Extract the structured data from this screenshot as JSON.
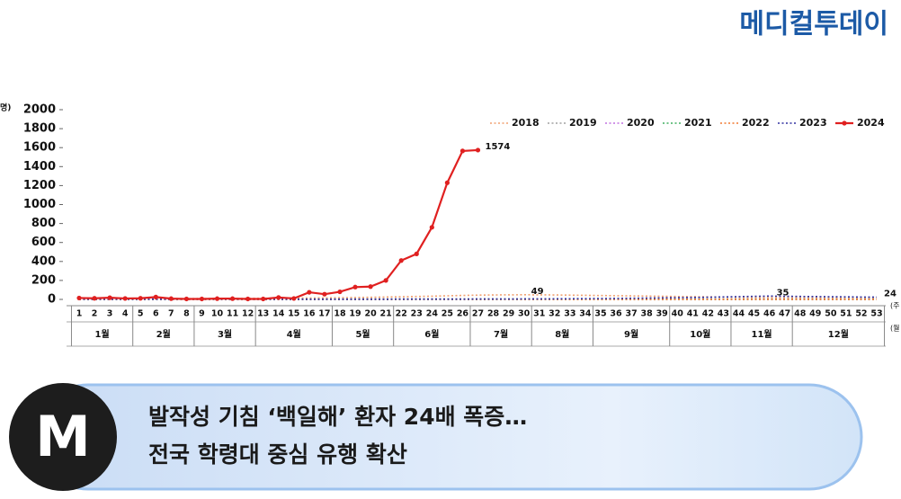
{
  "brand": "메디컬투데이",
  "headline": [
    "발작성 기침 ‘백일해’ 환자 24배 폭증…",
    "전국 학령대 중심 유행 확산"
  ],
  "logo_letter": "M",
  "chart_data": {
    "type": "line",
    "y_unit_label": "명)",
    "x_unit_labels": [
      "(주",
      "(월"
    ],
    "x": [
      1,
      2,
      3,
      4,
      5,
      6,
      7,
      8,
      9,
      10,
      11,
      12,
      13,
      14,
      15,
      16,
      17,
      18,
      19,
      20,
      21,
      22,
      23,
      24,
      25,
      26,
      27,
      28,
      29,
      30,
      31,
      32,
      33,
      34,
      35,
      36,
      37,
      38,
      39,
      40,
      41,
      42,
      43,
      44,
      45,
      46,
      47,
      48,
      49,
      50,
      51,
      52,
      53
    ],
    "xlim": [
      1,
      53
    ],
    "ylim": [
      0,
      2000
    ],
    "yticks": [
      0,
      200,
      400,
      600,
      800,
      1000,
      1200,
      1400,
      1600,
      1800,
      2000
    ],
    "month_groups": [
      {
        "label": "1월",
        "first_week": 1,
        "last_week": 4
      },
      {
        "label": "2월",
        "first_week": 5,
        "last_week": 8
      },
      {
        "label": "3월",
        "first_week": 9,
        "last_week": 12
      },
      {
        "label": "4월",
        "first_week": 13,
        "last_week": 17
      },
      {
        "label": "5월",
        "first_week": 18,
        "last_week": 21
      },
      {
        "label": "6월",
        "first_week": 22,
        "last_week": 26
      },
      {
        "label": "7월",
        "first_week": 27,
        "last_week": 30
      },
      {
        "label": "8월",
        "first_week": 31,
        "last_week": 34
      },
      {
        "label": "9월",
        "first_week": 35,
        "last_week": 39
      },
      {
        "label": "10월",
        "first_week": 40,
        "last_week": 43
      },
      {
        "label": "11월",
        "first_week": 44,
        "last_week": 47
      },
      {
        "label": "12월",
        "first_week": 48,
        "last_week": 53
      }
    ],
    "series": [
      {
        "name": "2018",
        "color": "#f0a070",
        "dotted": true,
        "values": [
          5,
          5,
          6,
          6,
          7,
          7,
          8,
          8,
          9,
          10,
          10,
          11,
          12,
          13,
          14,
          15,
          16,
          18,
          20,
          22,
          25,
          28,
          31,
          34,
          38,
          42,
          45,
          47,
          48,
          49,
          48,
          47,
          45,
          43,
          41,
          39,
          37,
          35,
          33,
          31,
          29,
          27,
          25,
          23,
          21,
          20,
          19,
          18,
          17,
          16,
          15,
          14,
          13
        ]
      },
      {
        "name": "2019",
        "color": "#a0a0a0",
        "dotted": true,
        "values": [
          10,
          10,
          9,
          9,
          8,
          8,
          8,
          7,
          7,
          7,
          6,
          6,
          6,
          6,
          5,
          5,
          5,
          5,
          5,
          5,
          5,
          5,
          5,
          5,
          5,
          5,
          5,
          5,
          5,
          5,
          5,
          5,
          5,
          5,
          5,
          5,
          5,
          5,
          5,
          5,
          5,
          5,
          5,
          5,
          5,
          5,
          5,
          5,
          5,
          5,
          5,
          5,
          5
        ]
      },
      {
        "name": "2020",
        "color": "#c070e0",
        "dotted": true,
        "values": [
          3,
          3,
          3,
          3,
          3,
          2,
          2,
          2,
          1,
          1,
          1,
          1,
          1,
          1,
          1,
          1,
          1,
          1,
          1,
          1,
          1,
          1,
          1,
          1,
          1,
          1,
          1,
          1,
          1,
          1,
          1,
          1,
          1,
          1,
          1,
          1,
          1,
          1,
          1,
          1,
          1,
          1,
          1,
          1,
          1,
          1,
          1,
          1,
          1,
          1,
          1,
          1,
          1
        ]
      },
      {
        "name": "2021",
        "color": "#40b060",
        "dotted": true,
        "values": [
          1,
          1,
          1,
          1,
          1,
          1,
          1,
          1,
          1,
          1,
          1,
          1,
          1,
          1,
          1,
          1,
          1,
          1,
          1,
          1,
          1,
          1,
          1,
          1,
          1,
          1,
          1,
          1,
          1,
          1,
          1,
          1,
          1,
          1,
          1,
          1,
          1,
          1,
          1,
          1,
          1,
          1,
          1,
          1,
          1,
          1,
          1,
          1,
          1,
          1,
          1,
          1,
          1
        ]
      },
      {
        "name": "2022",
        "color": "#f07830",
        "dotted": true,
        "values": [
          1,
          1,
          1,
          1,
          1,
          1,
          1,
          1,
          1,
          1,
          1,
          1,
          1,
          1,
          1,
          1,
          1,
          1,
          1,
          1,
          1,
          1,
          1,
          1,
          1,
          1,
          1,
          1,
          1,
          1,
          1,
          1,
          1,
          1,
          1,
          1,
          1,
          1,
          1,
          1,
          1,
          1,
          1,
          1,
          1,
          1,
          1,
          1,
          1,
          1,
          1,
          1,
          1
        ]
      },
      {
        "name": "2023",
        "color": "#3030a0",
        "dotted": true,
        "values": [
          2,
          2,
          2,
          2,
          2,
          2,
          2,
          2,
          2,
          2,
          2,
          2,
          2,
          2,
          2,
          2,
          2,
          2,
          2,
          2,
          2,
          3,
          3,
          3,
          3,
          3,
          4,
          4,
          4,
          5,
          5,
          6,
          7,
          8,
          9,
          10,
          12,
          14,
          16,
          18,
          20,
          23,
          26,
          29,
          32,
          35,
          33,
          31,
          30,
          28,
          27,
          25,
          24
        ]
      },
      {
        "name": "2024",
        "color": "#e02020",
        "dotted": false,
        "values": [
          15,
          12,
          18,
          10,
          12,
          25,
          8,
          5,
          5,
          8,
          8,
          5,
          5,
          20,
          10,
          75,
          55,
          80,
          130,
          135,
          200,
          410,
          480,
          760,
          1230,
          1565,
          1574,
          null,
          null,
          null,
          null,
          null,
          null,
          null,
          null,
          null,
          null,
          null,
          null,
          null,
          null,
          null,
          null,
          null,
          null,
          null,
          null,
          null,
          null,
          null,
          null,
          null,
          null
        ]
      }
    ],
    "annotations": [
      {
        "text": "1574",
        "x": 27,
        "y": 1574
      },
      {
        "text": "49",
        "x": 30,
        "y": 49
      },
      {
        "text": "35",
        "x": 46,
        "y": 35
      },
      {
        "text": "24",
        "x": 53,
        "y": 24
      }
    ]
  }
}
